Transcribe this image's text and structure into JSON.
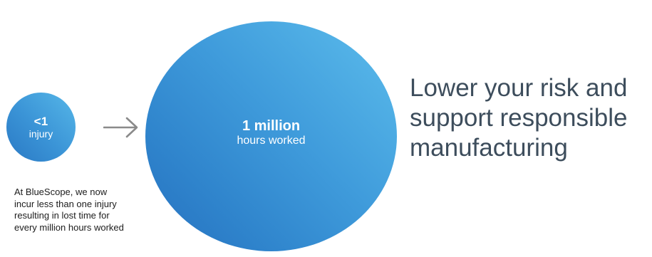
{
  "left_stat": {
    "value": "<1",
    "label": "injury"
  },
  "right_stat": {
    "value": "1 million",
    "label": "hours worked"
  },
  "caption_lines": [
    "At BlueScope, we now",
    "incur less than one injury",
    "resulting in lost time for",
    "every million hours worked"
  ],
  "headline_lines": [
    "Lower your risk and",
    "support responsible",
    "manufacturing"
  ],
  "icons": {
    "arrow": "arrow-right-icon"
  },
  "colors": {
    "circle_light": "#56b7e8",
    "circle_dark": "#2670bf",
    "headline": "#3d4d5c",
    "arrow": "#8a8a8a"
  }
}
